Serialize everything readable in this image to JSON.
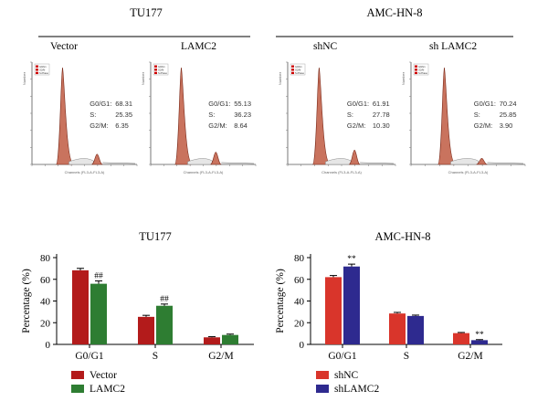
{
  "colors": {
    "vector": "#b31b1b",
    "lamc2": "#2e7d32",
    "shnc": "#d9352b",
    "shlamc2": "#2e2a8f",
    "histogram_fill": "#c9735e",
    "legend_g0g1": "#cc0000",
    "legend_g2m": "#cc0000",
    "legend_sphase": "#cc0000"
  },
  "flow": {
    "groups": [
      {
        "title": "TU177"
      },
      {
        "title": "AMC-HN-8"
      }
    ],
    "panels": [
      {
        "label": "Vector",
        "g0g1_label": "G0/G1:",
        "g0g1_value": "68.31",
        "s_label": "S:",
        "s_value": "25.35",
        "g2m_label": "G2/M:",
        "g2m_value": "6.35",
        "legend": [
          "G0/G1",
          "G2/M",
          "S-Phase"
        ],
        "ylabel": "Number",
        "xlabel": "Channels (FL3-A-FL3-A)"
      },
      {
        "label": "LAMC2",
        "g0g1_label": "G0/G1:",
        "g0g1_value": "55.13",
        "s_label": "S:",
        "s_value": "36.23",
        "g2m_label": "G2/M:",
        "g2m_value": "8.64",
        "legend": [
          "G0/G1",
          "G2/M",
          "S-Phase"
        ],
        "ylabel": "Number",
        "xlabel": "Channels (FL3-A-FL3-A)"
      },
      {
        "label": "shNC",
        "g0g1_label": "G0/G1:",
        "g0g1_value": "61.91",
        "s_label": "S:",
        "s_value": "27.78",
        "g2m_label": "G2/M:",
        "g2m_value": "10.30",
        "legend": [
          "G0/G1",
          "G2/M",
          "S-Phase"
        ],
        "ylabel": "Number",
        "xlabel": "Channels (FL3-A-FL3-A)"
      },
      {
        "label": "sh LAMC2",
        "g0g1_label": "G0/G1:",
        "g0g1_value": "70.24",
        "s_label": "S:",
        "s_value": "25.85",
        "g2m_label": "G2/M:",
        "g2m_value": "3.90",
        "legend": [
          "G0/G1",
          "G2/M",
          "S-Phase"
        ],
        "ylabel": "Number",
        "xlabel": "Channels (FL3-A-FL3-A)"
      }
    ]
  },
  "chart_data": [
    {
      "type": "bar",
      "title": "TU177",
      "ylabel": "Percentage (%)",
      "xlabel": "",
      "categories": [
        "G0/G1",
        "S",
        "G2/M"
      ],
      "ylim": [
        0,
        80
      ],
      "yticks": [
        0,
        20,
        40,
        60,
        80
      ],
      "series": [
        {
          "name": "Vector",
          "values": [
            68.3,
            25.4,
            6.5
          ],
          "errors": [
            1.8,
            1.4,
            0.6
          ]
        },
        {
          "name": "LAMC2",
          "values": [
            55.9,
            35.6,
            8.7
          ],
          "errors": [
            2.6,
            1.6,
            0.8
          ]
        }
      ],
      "annotations": [
        {
          "category": "G0/G1",
          "series": "LAMC2",
          "text": "##"
        },
        {
          "category": "S",
          "series": "LAMC2",
          "text": "##"
        }
      ],
      "legend": "bottom-left",
      "grid": false
    },
    {
      "type": "bar",
      "title": "AMC-HN-8",
      "ylabel": "Percentage (%)",
      "xlabel": "",
      "categories": [
        "G0/G1",
        "S",
        "G2/M"
      ],
      "ylim": [
        0,
        80
      ],
      "yticks": [
        0,
        20,
        40,
        60,
        80
      ],
      "series": [
        {
          "name": "shNC",
          "values": [
            62.0,
            28.5,
            10.4
          ],
          "errors": [
            1.5,
            1.0,
            0.6
          ]
        },
        {
          "name": "shLAMC2",
          "values": [
            71.8,
            26.2,
            3.9
          ],
          "errors": [
            2.2,
            0.8,
            0.5
          ]
        }
      ],
      "annotations": [
        {
          "category": "G0/G1",
          "series": "shLAMC2",
          "text": "**"
        },
        {
          "category": "G2/M",
          "series": "shLAMC2",
          "text": "**"
        }
      ],
      "legend": "bottom-left",
      "grid": false
    }
  ]
}
